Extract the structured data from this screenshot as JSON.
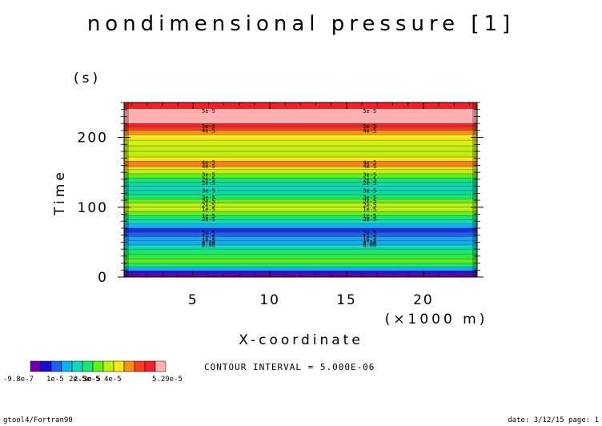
{
  "chart_data": {
    "type": "heatmap",
    "title": "nondimensional pressure [1]",
    "xlabel": "X-coordinate",
    "xunit": "(×1000 m)",
    "ylabel": "Time",
    "yunit": "(s)",
    "xlim": [
      0.5,
      23.5
    ],
    "ylim": [
      0,
      250
    ],
    "xticks": [
      "5",
      "10",
      "15",
      "20"
    ],
    "yticks": [
      "0",
      "100",
      "200"
    ],
    "contour_interval_text": "CONTOUR INTERVAL = 5.000E-06",
    "colorbar_labels": [
      "-9.8e-7",
      "1e-5",
      "2e-5",
      "2.5e-5",
      "3e-5",
      "4e-5",
      "5.29e-5"
    ],
    "colorbar_colors": [
      "#6a00a8",
      "#1a0dd4",
      "#2060e8",
      "#10b0f0",
      "#10d8c0",
      "#18e870",
      "#60f020",
      "#c0f010",
      "#f8e818",
      "#f89018",
      "#f84020",
      "#f02028",
      "#ffb0b0"
    ],
    "bands": [
      {
        "y0": 0,
        "y1": 5,
        "color": "#6a00a8"
      },
      {
        "y0": 5,
        "y1": 9,
        "color": "#1a0dd4"
      },
      {
        "y0": 9,
        "y1": 14,
        "color": "#10b0f0"
      },
      {
        "y0": 14,
        "y1": 20,
        "color": "#18e870"
      },
      {
        "y0": 20,
        "y1": 26,
        "color": "#60f020"
      },
      {
        "y0": 26,
        "y1": 33,
        "color": "#30e840"
      },
      {
        "y0": 33,
        "y1": 40,
        "color": "#18e870"
      },
      {
        "y0": 40,
        "y1": 46,
        "color": "#10d8c0"
      },
      {
        "y0": 46,
        "y1": 52,
        "color": "#10b0f0"
      },
      {
        "y0": 52,
        "y1": 58,
        "color": "#20a0f0"
      },
      {
        "y0": 58,
        "y1": 64,
        "color": "#2060e8"
      },
      {
        "y0": 64,
        "y1": 70,
        "color": "#1a30e0"
      },
      {
        "y0": 70,
        "y1": 76,
        "color": "#10b0f0"
      },
      {
        "y0": 76,
        "y1": 82,
        "color": "#10d8c0"
      },
      {
        "y0": 82,
        "y1": 88,
        "color": "#18e870"
      },
      {
        "y0": 88,
        "y1": 94,
        "color": "#60f020"
      },
      {
        "y0": 94,
        "y1": 100,
        "color": "#c0f010"
      },
      {
        "y0": 100,
        "y1": 106,
        "color": "#c0f010"
      },
      {
        "y0": 106,
        "y1": 112,
        "color": "#60f020"
      },
      {
        "y0": 112,
        "y1": 118,
        "color": "#18e870"
      },
      {
        "y0": 118,
        "y1": 124,
        "color": "#10d8a0"
      },
      {
        "y0": 124,
        "y1": 130,
        "color": "#10d8c0"
      },
      {
        "y0": 130,
        "y1": 136,
        "color": "#10d8a0"
      },
      {
        "y0": 136,
        "y1": 142,
        "color": "#18e870"
      },
      {
        "y0": 142,
        "y1": 148,
        "color": "#60f020"
      },
      {
        "y0": 148,
        "y1": 154,
        "color": "#c0f010"
      },
      {
        "y0": 154,
        "y1": 158,
        "color": "#f8e818"
      },
      {
        "y0": 158,
        "y1": 166,
        "color": "#f88018"
      },
      {
        "y0": 166,
        "y1": 172,
        "color": "#f8e818"
      },
      {
        "y0": 172,
        "y1": 180,
        "color": "#c0f010"
      },
      {
        "y0": 180,
        "y1": 188,
        "color": "#c0f010"
      },
      {
        "y0": 188,
        "y1": 196,
        "color": "#d8f010"
      },
      {
        "y0": 196,
        "y1": 204,
        "color": "#f8e818"
      },
      {
        "y0": 204,
        "y1": 210,
        "color": "#f89018"
      },
      {
        "y0": 210,
        "y1": 215,
        "color": "#f04020"
      },
      {
        "y0": 215,
        "y1": 220,
        "color": "#f02028"
      },
      {
        "y0": 220,
        "y1": 241,
        "color": "#ffb0b0"
      },
      {
        "y0": 241,
        "y1": 250,
        "color": "#f02028"
      }
    ],
    "contour_labels": [
      {
        "y": 238,
        "text": "5e-5"
      },
      {
        "y": 216,
        "text": "5e-5"
      },
      {
        "y": 210,
        "text": "4e-5"
      },
      {
        "y": 164,
        "text": "4e-5"
      },
      {
        "y": 159,
        "text": "4e-5"
      },
      {
        "y": 147,
        "text": "3e-5"
      },
      {
        "y": 140,
        "text": "2e-5"
      },
      {
        "y": 135,
        "text": "2e-5"
      },
      {
        "y": 124,
        "text": "3e-5"
      },
      {
        "y": 114,
        "text": "3e-5"
      },
      {
        "y": 109,
        "text": "2e-5"
      },
      {
        "y": 103,
        "text": "2e-5"
      },
      {
        "y": 97,
        "text": "1e-5"
      },
      {
        "y": 88,
        "text": "1e-5"
      },
      {
        "y": 83,
        "text": "2e-5"
      },
      {
        "y": 63,
        "text": "2e-5"
      },
      {
        "y": 57,
        "text": "1e-5"
      },
      {
        "y": 53,
        "text": "1e-5"
      },
      {
        "y": 49,
        "text": "0.00"
      },
      {
        "y": 46,
        "text": "0.00"
      }
    ],
    "contour_label_x": [
      6,
      16.5
    ]
  },
  "footer": {
    "left": "gtool4/Fortran90",
    "right": "date: 3/12/15 page: 1"
  }
}
